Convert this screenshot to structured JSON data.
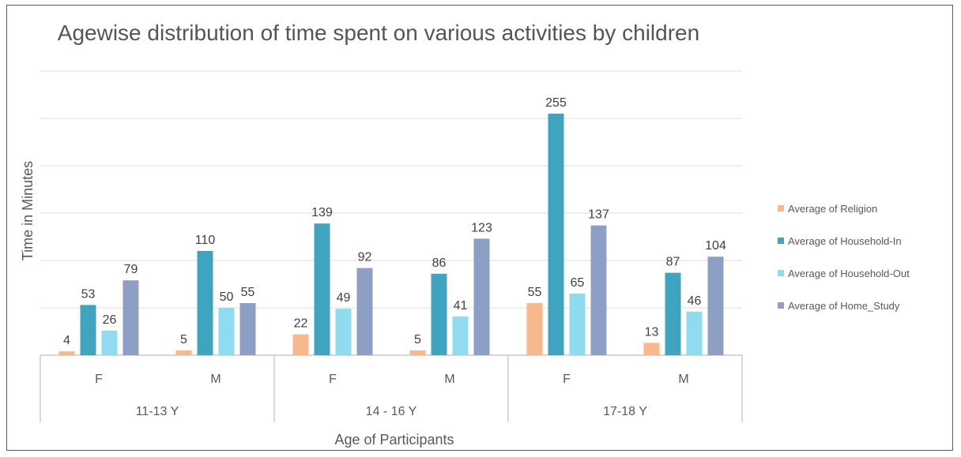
{
  "chart_data": {
    "type": "bar",
    "title": "Agewise distribution of time spent on various activities by children",
    "xlabel": "Age of  Participants",
    "ylabel": "Time in Minutes",
    "ylim": [
      0,
      300
    ],
    "grid": true,
    "legend_position": "right",
    "groups": [
      {
        "label": "11-13 Y",
        "categories": [
          "F",
          "M"
        ]
      },
      {
        "label": "14 - 16 Y",
        "categories": [
          "F",
          "M"
        ]
      },
      {
        "label": "17-18 Y",
        "categories": [
          "F",
          "M"
        ]
      }
    ],
    "series": [
      {
        "name": "Average of Religion",
        "color": "#f7b98b",
        "values": [
          4,
          5,
          22,
          5,
          55,
          13
        ]
      },
      {
        "name": "Average of Household-In",
        "color": "#3fa4bf",
        "values": [
          53,
          110,
          139,
          86,
          255,
          87
        ]
      },
      {
        "name": "Average of Household-Out",
        "color": "#8fdcf0",
        "values": [
          26,
          50,
          49,
          41,
          65,
          46
        ]
      },
      {
        "name": "Average of Home_Study",
        "color": "#8d9fc4",
        "values": [
          79,
          55,
          92,
          123,
          137,
          104
        ]
      }
    ]
  }
}
